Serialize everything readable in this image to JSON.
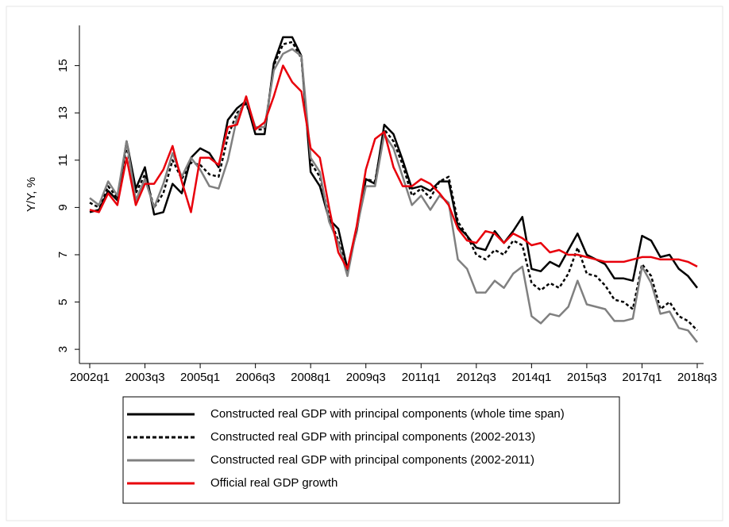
{
  "chart_data": {
    "type": "line",
    "y_label": "Y/Y, %",
    "categories": [
      "2002q1",
      null,
      null,
      null,
      null,
      null,
      "2003q3",
      null,
      null,
      null,
      null,
      null,
      "2005q1",
      null,
      null,
      null,
      null,
      null,
      "2006q3",
      null,
      null,
      null,
      null,
      null,
      "2008q1",
      null,
      null,
      null,
      null,
      null,
      "2009q3",
      null,
      null,
      null,
      null,
      null,
      "2011q1",
      null,
      null,
      null,
      null,
      null,
      "2012q3",
      null,
      null,
      null,
      null,
      null,
      "2014q1",
      null,
      null,
      null,
      null,
      null,
      "2015q3",
      null,
      null,
      null,
      null,
      null,
      "2017q1",
      null,
      null,
      null,
      null,
      null,
      "2018q3"
    ],
    "ylim": [
      2.4,
      16.7
    ],
    "yticks": [
      3,
      5,
      7,
      9,
      11,
      13,
      15
    ],
    "series": [
      {
        "name": "Constructed real GDP with principal components (whole time span)",
        "color": "#000000",
        "dash": false,
        "values": [
          8.8,
          8.9,
          9.7,
          9.3,
          11.8,
          9.8,
          10.7,
          8.7,
          8.8,
          10.0,
          9.6,
          11.1,
          11.5,
          11.3,
          10.7,
          12.7,
          13.2,
          13.5,
          12.1,
          12.1,
          15.1,
          16.2,
          16.2,
          15.4,
          10.5,
          9.9,
          8.5,
          8.1,
          6.4,
          8.0,
          10.2,
          10.0,
          12.5,
          12.1,
          11.0,
          9.8,
          9.9,
          9.7,
          10.1,
          10.1,
          8.2,
          7.8,
          7.3,
          7.2,
          8.0,
          7.5,
          8.0,
          8.6,
          6.4,
          6.3,
          6.7,
          6.5,
          7.2,
          7.9,
          7.0,
          6.8,
          6.6,
          6.0,
          6.0,
          5.9,
          7.8,
          7.6,
          6.9,
          7.0,
          6.4,
          6.1,
          5.6
        ]
      },
      {
        "name": "Constructed real GDP with principal components (2002-2013)",
        "color": "#000000",
        "dash": true,
        "values": [
          9.2,
          9.0,
          9.9,
          9.4,
          11.6,
          9.6,
          10.4,
          9.0,
          9.6,
          11.0,
          10.2,
          10.9,
          10.8,
          10.4,
          10.3,
          12.0,
          13.0,
          13.4,
          12.3,
          12.3,
          15.0,
          15.9,
          16.0,
          15.3,
          10.9,
          10.3,
          8.6,
          7.6,
          6.3,
          8.1,
          10.2,
          10.1,
          12.3,
          11.8,
          10.8,
          9.5,
          9.8,
          9.4,
          10.1,
          10.3,
          8.4,
          7.8,
          7.0,
          6.8,
          7.2,
          7.0,
          7.6,
          7.4,
          5.8,
          5.5,
          5.8,
          5.6,
          6.2,
          7.3,
          6.2,
          6.1,
          5.7,
          5.1,
          5.0,
          4.7,
          6.6,
          6.1,
          4.7,
          5.0,
          4.4,
          4.2,
          3.8
        ]
      },
      {
        "name": "Constructed real GDP with principal components (2002-2011)",
        "color": "#808080",
        "dash": false,
        "values": [
          9.4,
          9.1,
          10.1,
          9.5,
          11.8,
          9.3,
          10.2,
          9.0,
          10.0,
          11.3,
          10.3,
          11.1,
          10.6,
          9.9,
          9.8,
          11.0,
          12.8,
          13.6,
          12.4,
          12.4,
          14.8,
          15.5,
          15.7,
          15.4,
          11.1,
          10.5,
          8.4,
          7.5,
          6.1,
          8.1,
          9.9,
          9.9,
          12.1,
          11.5,
          10.3,
          9.1,
          9.5,
          8.9,
          9.5,
          9.2,
          6.8,
          6.4,
          5.4,
          5.4,
          5.9,
          5.6,
          6.2,
          6.5,
          4.4,
          4.1,
          4.5,
          4.4,
          4.8,
          5.9,
          4.9,
          4.8,
          4.7,
          4.2,
          4.2,
          4.3,
          6.5,
          5.8,
          4.5,
          4.6,
          3.9,
          3.8,
          3.3
        ]
      },
      {
        "name": "Official real GDP growth",
        "color": "#e8000b",
        "dash": false,
        "values": [
          8.9,
          8.8,
          9.6,
          9.1,
          11.1,
          9.1,
          10.0,
          10.0,
          10.6,
          11.6,
          10.1,
          8.8,
          11.1,
          11.1,
          10.8,
          12.4,
          12.5,
          13.7,
          12.3,
          12.6,
          13.7,
          15.0,
          14.3,
          13.9,
          11.5,
          11.1,
          9.0,
          7.1,
          6.4,
          8.2,
          10.6,
          11.9,
          12.2,
          10.7,
          9.9,
          9.9,
          10.2,
          10.0,
          9.6,
          9.1,
          8.1,
          7.6,
          7.5,
          8.0,
          7.9,
          7.5,
          7.9,
          7.7,
          7.4,
          7.5,
          7.1,
          7.2,
          7.0,
          7.0,
          6.9,
          6.8,
          6.7,
          6.7,
          6.7,
          6.8,
          6.9,
          6.9,
          6.8,
          6.8,
          6.8,
          6.7,
          6.5
        ]
      }
    ]
  }
}
